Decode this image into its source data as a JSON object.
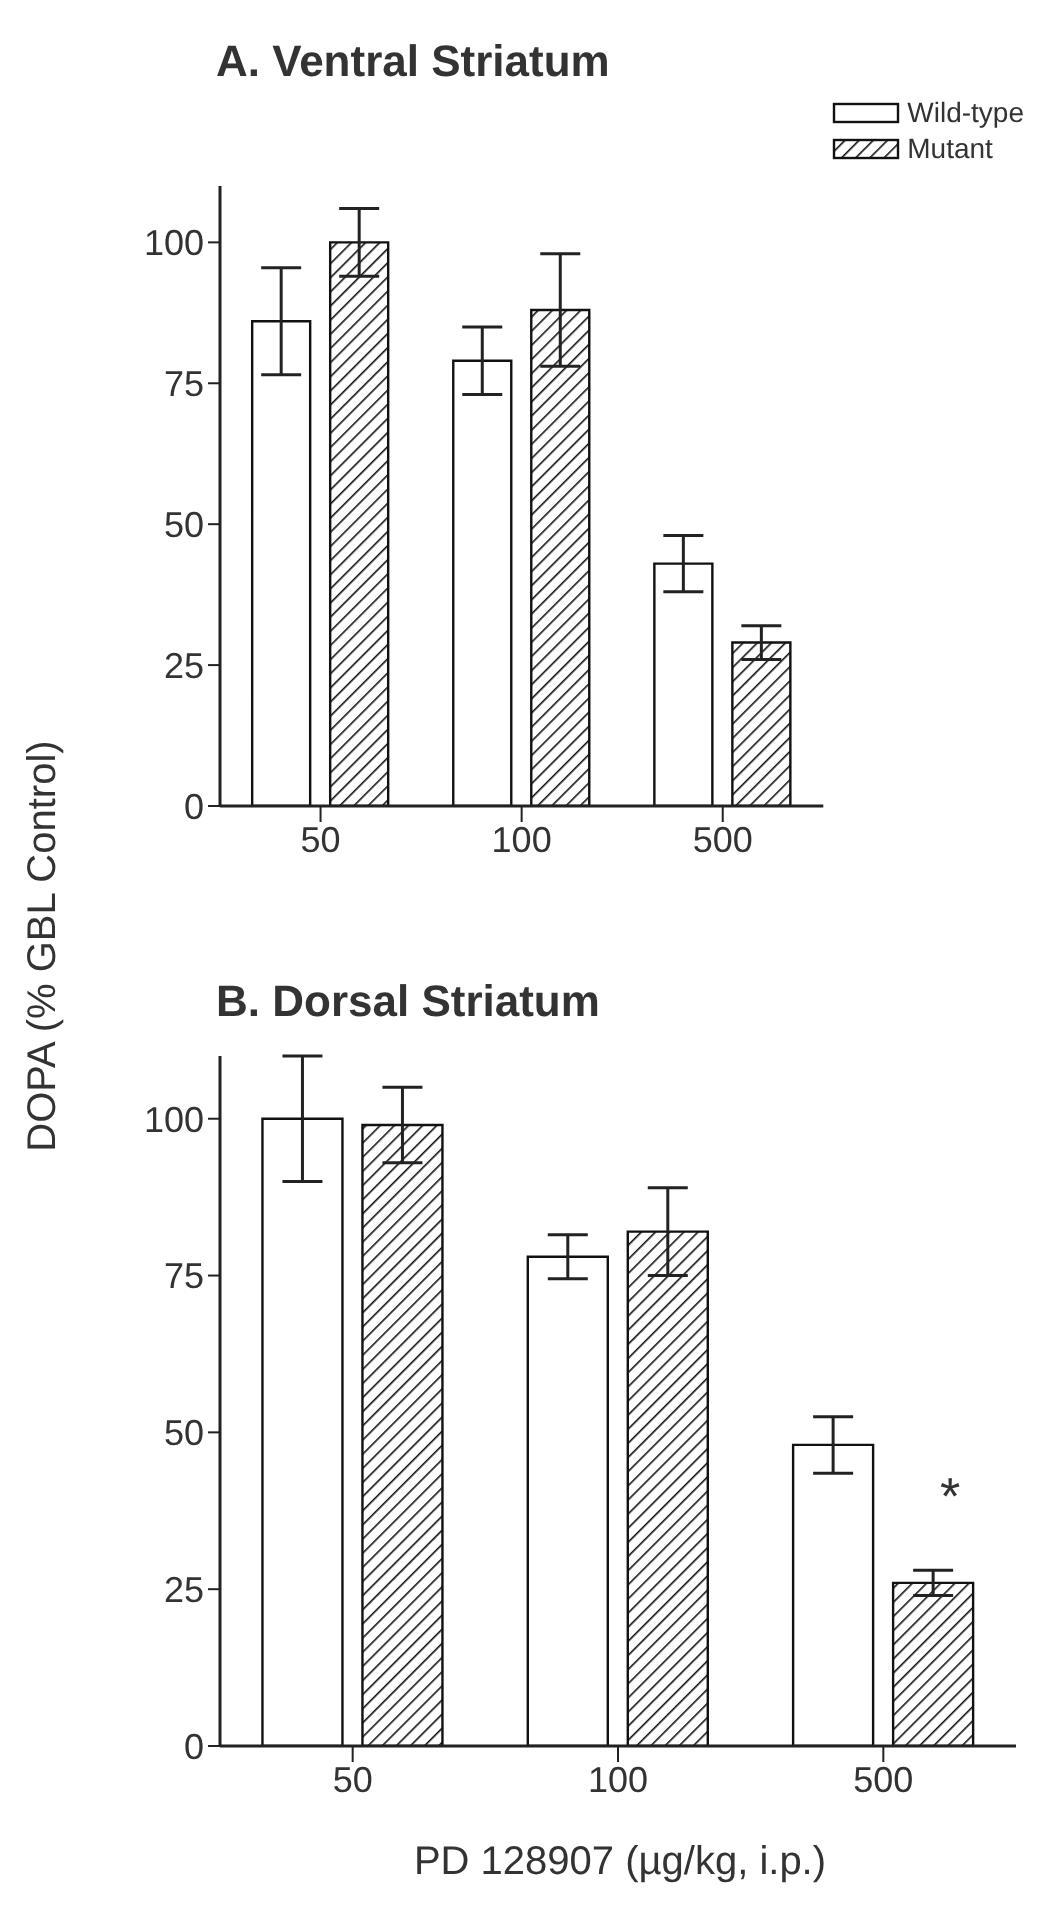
{
  "chart_data": [
    {
      "type": "bar",
      "title": "A.  Ventral Striatum",
      "ylabel": "DOPA (% GBL Control)",
      "categories": [
        "50",
        "100",
        "500"
      ],
      "series": [
        {
          "name": "Wild-type",
          "color": "#ffffff",
          "values": [
            86,
            79,
            43
          ],
          "errors": [
            9.5,
            6,
            5
          ]
        },
        {
          "name": "Mutant",
          "color": "#111111",
          "values": [
            100,
            88,
            29
          ],
          "errors": [
            6,
            10,
            3
          ]
        }
      ],
      "ylim": [
        0,
        110
      ],
      "yticks": [
        0,
        25,
        50,
        75,
        100
      ],
      "grid": false,
      "legend": "top right"
    },
    {
      "type": "bar",
      "title": "B.  Dorsal Striatum",
      "xlabel": "PD 128907 (µg/kg, i.p.)",
      "categories": [
        "50",
        "100",
        "500"
      ],
      "series": [
        {
          "color": "#ffffff",
          "values": [
            100,
            78,
            48
          ],
          "errors": [
            10,
            3.5,
            4.5
          ]
        },
        {
          "color": "#111111",
          "values": [
            99,
            82,
            26
          ],
          "errors": [
            6,
            7,
            2
          ]
        }
      ],
      "ylim": [
        0,
        110
      ],
      "yticks": [
        0,
        25,
        50,
        75,
        100
      ],
      "grid": false,
      "legend": false,
      "annotations": [
        "*"
      ]
    }
  ]
}
